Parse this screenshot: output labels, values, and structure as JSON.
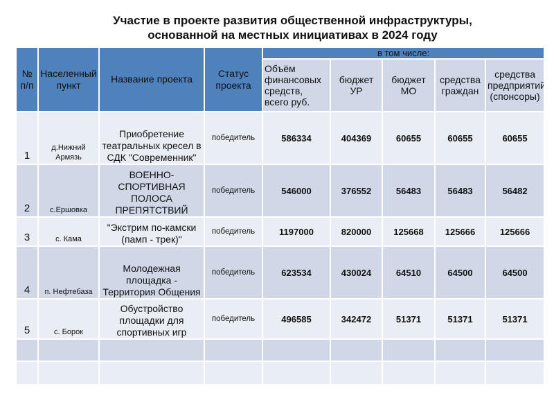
{
  "title": {
    "line1": "Участие в проекте развития общественной инфраструктуры,",
    "line2": "основанной на местных инициативах в 2024 году"
  },
  "header": {
    "num": "№ п/п",
    "place": "Населенный пункт",
    "project": "Название проекта",
    "status": "Статус проекта",
    "including": "в том числе:",
    "total": "Объём финансовых средств, всего руб.",
    "budget_ur": "бюджет УР",
    "budget_mo": "бюджет МО",
    "citizens": "средства граждан",
    "sponsors": "средства предприятий (спонсоры)"
  },
  "rows": [
    {
      "num": "1",
      "place": "д.Нижний Армязь",
      "project": "Приобретение театральных кресел в СДК \"Современник\"",
      "status": "победитель",
      "total": "586334",
      "ur": "404369",
      "mo": "60655",
      "citizens": "60655",
      "sponsors": "60655"
    },
    {
      "num": "2",
      "place": "с.Ершовка",
      "project": "ВОЕННО-СПОРТИВНАЯ ПОЛОСА ПРЕПЯТСТВИЙ",
      "status": "победитель",
      "total": "546000",
      "ur": "376552",
      "mo": "56483",
      "citizens": "56483",
      "sponsors": "56482"
    },
    {
      "num": "3",
      "place": "с. Кама",
      "project": "\"Экстрим по-камски (памп - трек)\"",
      "status": "победитель",
      "total": "1197000",
      "ur": "820000",
      "mo": "125668",
      "citizens": "125666",
      "sponsors": "125666"
    },
    {
      "num": "4",
      "place": "п. Нефтебаза",
      "project": "Молодежная площадка - Территория Общения",
      "status": "победитель",
      "total": "623534",
      "ur": "430024",
      "mo": "64510",
      "citizens": "64500",
      "sponsors": "64500"
    },
    {
      "num": "5",
      "place": "с. Борок",
      "project": "Обустройство площадки для спортивных игр",
      "status": "победитель",
      "total": "496585",
      "ur": "342472",
      "mo": "51371",
      "citizens": "51371",
      "sponsors": "51371"
    }
  ],
  "colors": {
    "header": "#4f81bd",
    "row_dark": "#d0d8e8",
    "row_light": "#e9edf4"
  }
}
